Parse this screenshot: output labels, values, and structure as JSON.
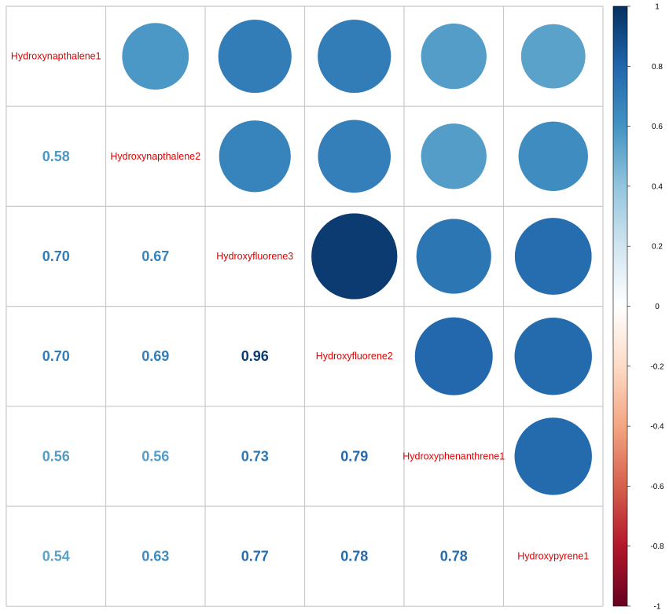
{
  "chart_data": {
    "type": "heatmap",
    "variables": [
      "Hydroxynapthalene1",
      "Hydroxynapthalene2",
      "Hydroxyfluorene3",
      "Hydroxyfluorene2",
      "Hydroxyphenanthrene1",
      "Hydroxypyrene1"
    ],
    "matrix": [
      [
        1,
        0.58,
        0.7,
        0.7,
        0.56,
        0.54
      ],
      [
        0.58,
        1,
        0.67,
        0.69,
        0.56,
        0.63
      ],
      [
        0.7,
        0.67,
        1,
        0.96,
        0.73,
        0.77
      ],
      [
        0.7,
        0.69,
        0.96,
        1,
        0.79,
        0.78
      ],
      [
        0.56,
        0.56,
        0.73,
        0.79,
        1,
        0.78
      ],
      [
        0.54,
        0.63,
        0.77,
        0.78,
        0.78,
        1
      ]
    ],
    "upper_method": "circle",
    "lower_method": "number",
    "diagonal": "variable names",
    "colorbar": {
      "range": [
        -1,
        1
      ],
      "ticks": [
        "1",
        "0.8",
        "0.6",
        "0.4",
        "0.2",
        "0",
        "-0.2",
        "-0.4",
        "-0.6",
        "-0.8",
        "-1"
      ],
      "palette": [
        "#053061",
        "#2166AC",
        "#4393C3",
        "#92C5DE",
        "#D1E5F0",
        "#FFFFFF",
        "#FDDBC7",
        "#F4A582",
        "#D6604D",
        "#B2182B",
        "#67001F"
      ]
    },
    "label_color": "#e00000",
    "grid_color": "#c8c8c8"
  }
}
